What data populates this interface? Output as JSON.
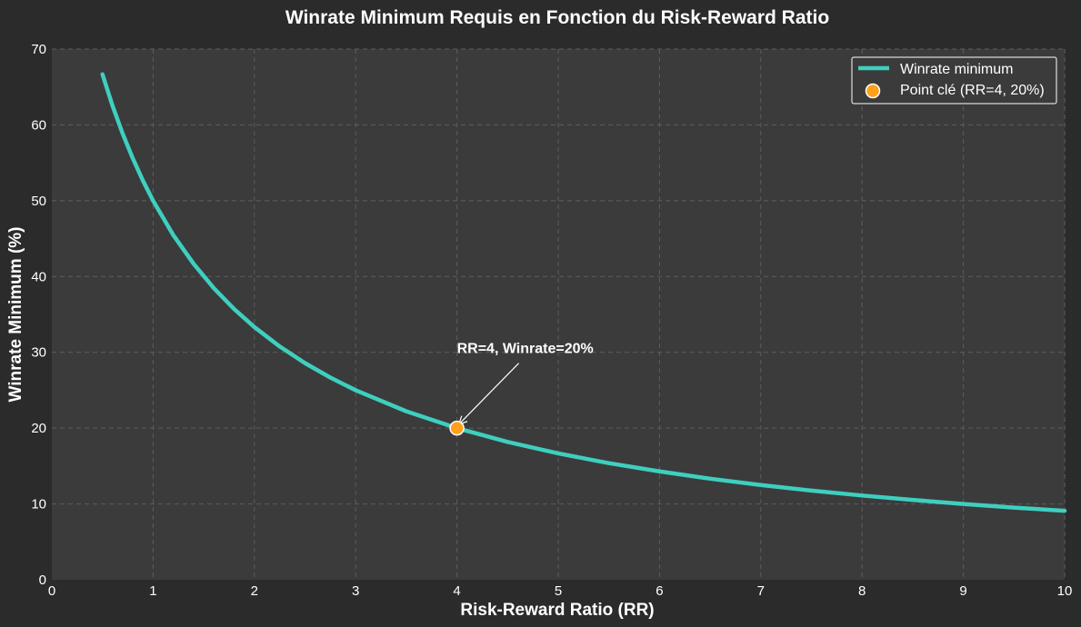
{
  "chart_data": {
    "type": "line",
    "title": "Winrate Minimum Requis en Fonction du Risk-Reward Ratio",
    "xlabel": "Risk-Reward Ratio (RR)",
    "ylabel": "Winrate Minimum (%)",
    "xlim": [
      0,
      10
    ],
    "ylim": [
      0,
      70
    ],
    "xticks": [
      "0",
      "1",
      "2",
      "3",
      "4",
      "5",
      "6",
      "7",
      "8",
      "9",
      "10"
    ],
    "yticks": [
      "0",
      "10",
      "20",
      "30",
      "40",
      "50",
      "60",
      "70"
    ],
    "grid": true,
    "legend_position": "top-right",
    "series": [
      {
        "name": "Winrate minimum",
        "color": "#3ecfbf",
        "x": [
          0.5,
          0.6,
          0.7,
          0.8,
          0.9,
          1.0,
          1.2,
          1.4,
          1.6,
          1.8,
          2.0,
          2.25,
          2.5,
          2.75,
          3.0,
          3.5,
          4.0,
          4.5,
          5.0,
          5.5,
          6.0,
          6.5,
          7.0,
          7.5,
          8.0,
          8.5,
          9.0,
          9.5,
          10.0
        ],
        "y": [
          66.67,
          62.5,
          58.82,
          55.56,
          52.63,
          50.0,
          45.45,
          41.67,
          38.46,
          35.71,
          33.33,
          30.77,
          28.57,
          26.67,
          25.0,
          22.22,
          20.0,
          18.18,
          16.67,
          15.38,
          14.29,
          13.33,
          12.5,
          11.76,
          11.11,
          10.53,
          10.0,
          9.52,
          9.09
        ]
      }
    ],
    "key_point": {
      "name": "Point clé (RR=4, 20%)",
      "x": 4,
      "y": 20,
      "color": "#ff9f1a"
    },
    "annotation": {
      "text": "RR=4, Winrate=20%",
      "x": 4,
      "y": 20,
      "text_x": 4.0,
      "text_y": 30
    }
  }
}
